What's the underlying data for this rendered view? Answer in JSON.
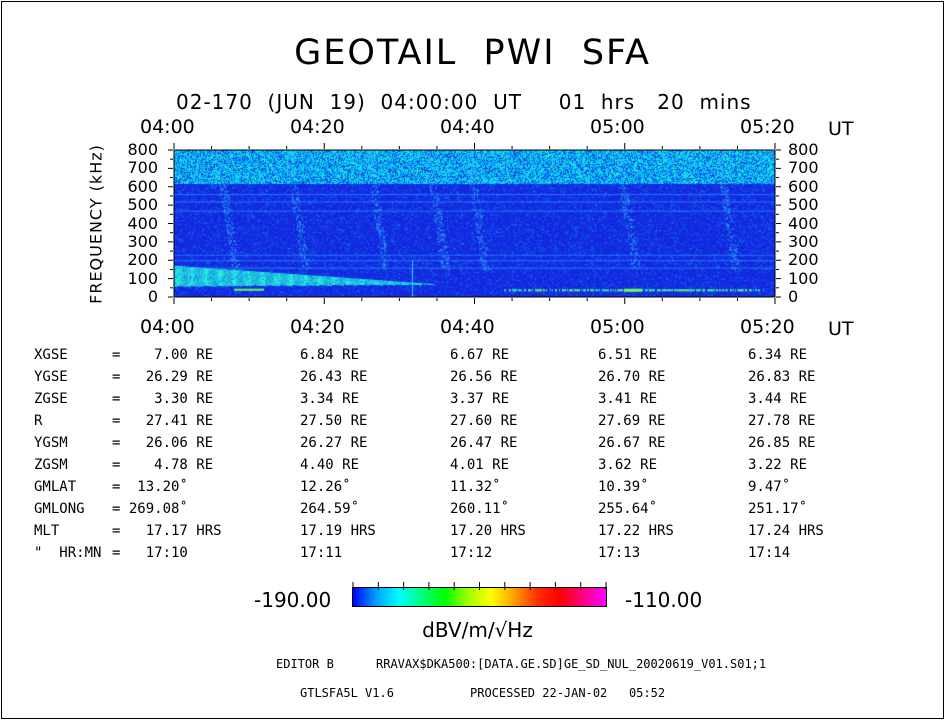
{
  "title": "GEOTAIL  PWI  SFA",
  "subtitle": "02-170  (JUN  19)  04:00:00  UT     01  hrs   20  mins",
  "chart_data": {
    "type": "heatmap",
    "x_tick_labels": [
      "04:00",
      "04:20",
      "04:40",
      "05:00",
      "05:20"
    ],
    "x_unit": "UT",
    "xlim": [
      "04:00",
      "05:20"
    ],
    "ylabel": "FREQUENCY (kHz)",
    "ylim": [
      0,
      800
    ],
    "y_ticks": [
      0,
      100,
      200,
      300,
      400,
      500,
      600,
      700,
      800
    ],
    "colorbar": {
      "min_label": "-190.00",
      "max_label": "-110.00",
      "unit": "dBV/m/√Hz",
      "colors": [
        "#0000ff",
        "#00a0ff",
        "#00ffff",
        "#00ff80",
        "#00ff00",
        "#a0ff00",
        "#ffff00",
        "#ffa000",
        "#ff3000",
        "#ff0000",
        "#ff0080",
        "#ff00ff"
      ]
    },
    "background_color": "#1428e0",
    "features": [
      {
        "name": "band",
        "freq_khz": [
          620,
          800
        ],
        "level": "cyan"
      },
      {
        "name": "band",
        "freq_khz": [
          60,
          170
        ],
        "time": [
          "04:00",
          "04:34"
        ],
        "level": "cyan-green",
        "shape": "decreasing"
      },
      {
        "name": "line",
        "freq_khz": 40,
        "time": [
          "04:45",
          "05:18"
        ],
        "level": "green"
      }
    ]
  },
  "orbit_table": {
    "rows": [
      {
        "label": "XGSE",
        "cells": [
          "=    7.00 RE",
          "6.84 RE",
          "6.67 RE",
          "6.51 RE",
          "6.34 RE"
        ]
      },
      {
        "label": "YGSE",
        "cells": [
          "=   26.29 RE",
          "26.43 RE",
          "26.56 RE",
          "26.70 RE",
          "26.83 RE"
        ]
      },
      {
        "label": "ZGSE",
        "cells": [
          "=    3.30 RE",
          "3.34 RE",
          "3.37 RE",
          "3.41 RE",
          "3.44 RE"
        ]
      },
      {
        "label": "R",
        "cells": [
          "=   27.41 RE",
          "27.50 RE",
          "27.60 RE",
          "27.69 RE",
          "27.78 RE"
        ]
      },
      {
        "label": "YGSM",
        "cells": [
          "=   26.06 RE",
          "26.27 RE",
          "26.47 RE",
          "26.67 RE",
          "26.85 RE"
        ]
      },
      {
        "label": "ZGSM",
        "cells": [
          "=    4.78 RE",
          "4.40 RE",
          "4.01 RE",
          "3.62 RE",
          "3.22 RE"
        ]
      },
      {
        "label": "GMLAT",
        "cells": [
          "=  13.20˚",
          "12.26˚",
          "11.32˚",
          "10.39˚",
          "9.47˚"
        ]
      },
      {
        "label": "GMLONG",
        "cells": [
          "= 269.08˚",
          "264.59˚",
          "260.11˚",
          "255.64˚",
          "251.17˚"
        ]
      },
      {
        "label": "MLT",
        "cells": [
          "=   17.17 HRS",
          "17.19 HRS",
          "17.20 HRS",
          "17.22 HRS",
          "17.24 HRS"
        ]
      },
      {
        "label": "\"  HR:MN",
        "cells": [
          "=   17:10",
          "17:11",
          "17:12",
          "17:13",
          "17:14"
        ]
      }
    ]
  },
  "footer": {
    "editor": "EDITOR B",
    "path": "RRAVAX$DKA500:[DATA.GE.SD]GE_SD_NUL_20020619_V01.S01;1",
    "version": "GTLSFA5L V1.6",
    "processed": "PROCESSED 22-JAN-02   05:52"
  }
}
